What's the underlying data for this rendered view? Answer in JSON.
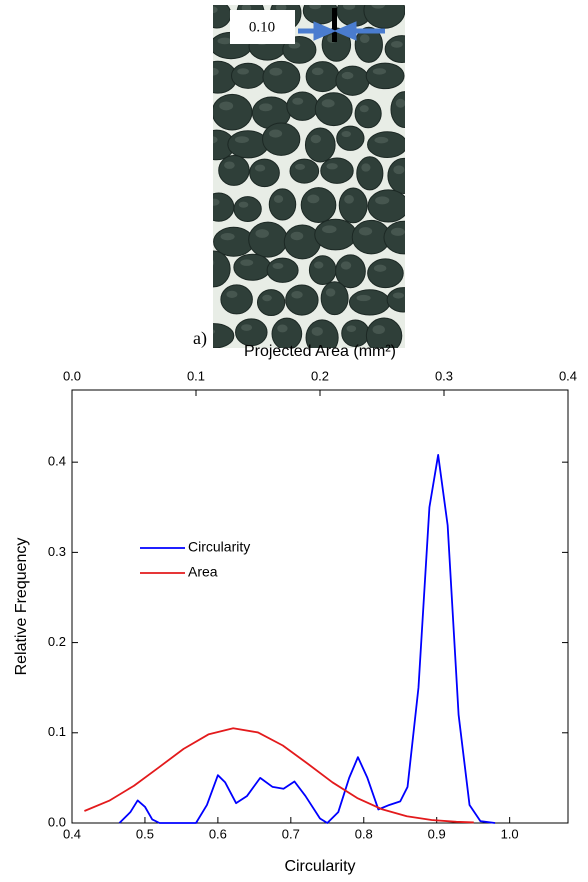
{
  "figure": {
    "scale_label": "0.10",
    "panel_label": "a)"
  },
  "chart_data": {
    "type": "line",
    "xlabel": "Circularity",
    "ylabel": "Relative Frequency",
    "x2label": "Projected Area (mm²)",
    "xlim": [
      0.4,
      1.08
    ],
    "xticks": [
      {
        "value": 0.4,
        "label": "0.4"
      },
      0.5,
      0.6,
      0.7,
      0.8,
      0.9,
      {
        "value": 1,
        "label": "1.0"
      }
    ],
    "x2lim": [
      0,
      0.4
    ],
    "x2ticks": [
      {
        "value": 0,
        "label": "0.0"
      },
      0.1,
      0.2,
      0.3,
      0.4
    ],
    "ylim": [
      0,
      0.48
    ],
    "yticks": [
      {
        "value": 0,
        "label": "0.0"
      },
      0.1,
      0.2,
      0.3,
      0.4
    ],
    "legend": "upper left",
    "series": [
      {
        "name": "Circularity",
        "color": "#0000ff",
        "x": [
          0.465,
          0.48,
          0.49,
          0.5,
          0.51,
          0.52,
          0.57,
          0.585,
          0.6,
          0.61,
          0.625,
          0.64,
          0.658,
          0.675,
          0.69,
          0.705,
          0.72,
          0.74,
          0.75,
          0.765,
          0.78,
          0.792,
          0.805,
          0.82,
          0.835,
          0.85,
          0.86,
          0.875,
          0.89,
          0.902,
          0.915,
          0.93,
          0.945,
          0.96,
          0.98
        ],
        "values": [
          0,
          0.012,
          0.025,
          0.018,
          0.004,
          0,
          0,
          0.02,
          0.053,
          0.045,
          0.022,
          0.03,
          0.05,
          0.04,
          0.038,
          0.046,
          0.03,
          0.005,
          0,
          0.012,
          0.05,
          0.073,
          0.05,
          0.015,
          0.02,
          0.024,
          0.04,
          0.15,
          0.35,
          0.408,
          0.33,
          0.12,
          0.02,
          0.002,
          0
        ]
      },
      {
        "name": "Area",
        "color": "#e31a1c",
        "axis": "x2",
        "x": [
          0.01,
          0.03,
          0.05,
          0.07,
          0.09,
          0.11,
          0.13,
          0.15,
          0.17,
          0.19,
          0.21,
          0.23,
          0.25,
          0.27,
          0.29,
          0.31,
          0.324
        ],
        "values": [
          0.0133,
          0.0247,
          0.0413,
          0.0616,
          0.0822,
          0.0982,
          0.105,
          0.1004,
          0.0859,
          0.0658,
          0.0451,
          0.0277,
          0.0152,
          0.0075,
          0.0033,
          0.0013,
          0.0006
        ]
      }
    ]
  }
}
